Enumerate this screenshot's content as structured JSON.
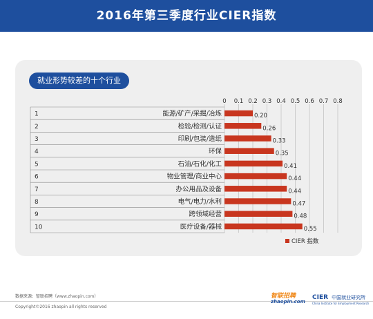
{
  "header": {
    "title": "2016年第三季度行业CIER指数"
  },
  "section_label": "就业形势较差的十个行业",
  "chart_data": {
    "type": "bar",
    "orientation": "horizontal",
    "ranks": [
      "1",
      "2",
      "3",
      "4",
      "5",
      "6",
      "7",
      "8",
      "9",
      "10"
    ],
    "categories": [
      "能源/矿产/采掘/冶炼",
      "检验/检测/认证",
      "印刷/包装/造纸",
      "环保",
      "石油/石化/化工",
      "物业管理/商业中心",
      "办公用品及设备",
      "电气/电力/水利",
      "跨领域经营",
      "医疗设备/器械"
    ],
    "series": [
      {
        "name": "CIER 指数",
        "values": [
          0.2,
          0.26,
          0.33,
          0.35,
          0.41,
          0.44,
          0.44,
          0.47,
          0.48,
          0.55
        ]
      }
    ],
    "value_labels": [
      "0.20",
      "0.26",
      "0.33",
      "0.35",
      "0.41",
      "0.44",
      "0.44",
      "0.47",
      "0.48",
      "0.55"
    ],
    "xlim": [
      0,
      0.8
    ],
    "ticks": [
      "0",
      "0.1",
      "0.2",
      "0.3",
      "0.4",
      "0.5",
      "0.6",
      "0.7",
      "0.8"
    ],
    "legend_position": "bottom-right",
    "bar_color": "#c8361f"
  },
  "footer": {
    "source": "数据来源：智联招聘（www.zhaopin.com）",
    "copyright": "Copyright©2016 zhaopin all rights reserved",
    "logo_zhaopin_top": "智联招聘",
    "logo_zhaopin_bottom": "zhaopin.com",
    "logo_cier": "CIER",
    "logo_cier_name": "中国就业研究所",
    "logo_cier_sub": "China Institute for Employment Research"
  }
}
